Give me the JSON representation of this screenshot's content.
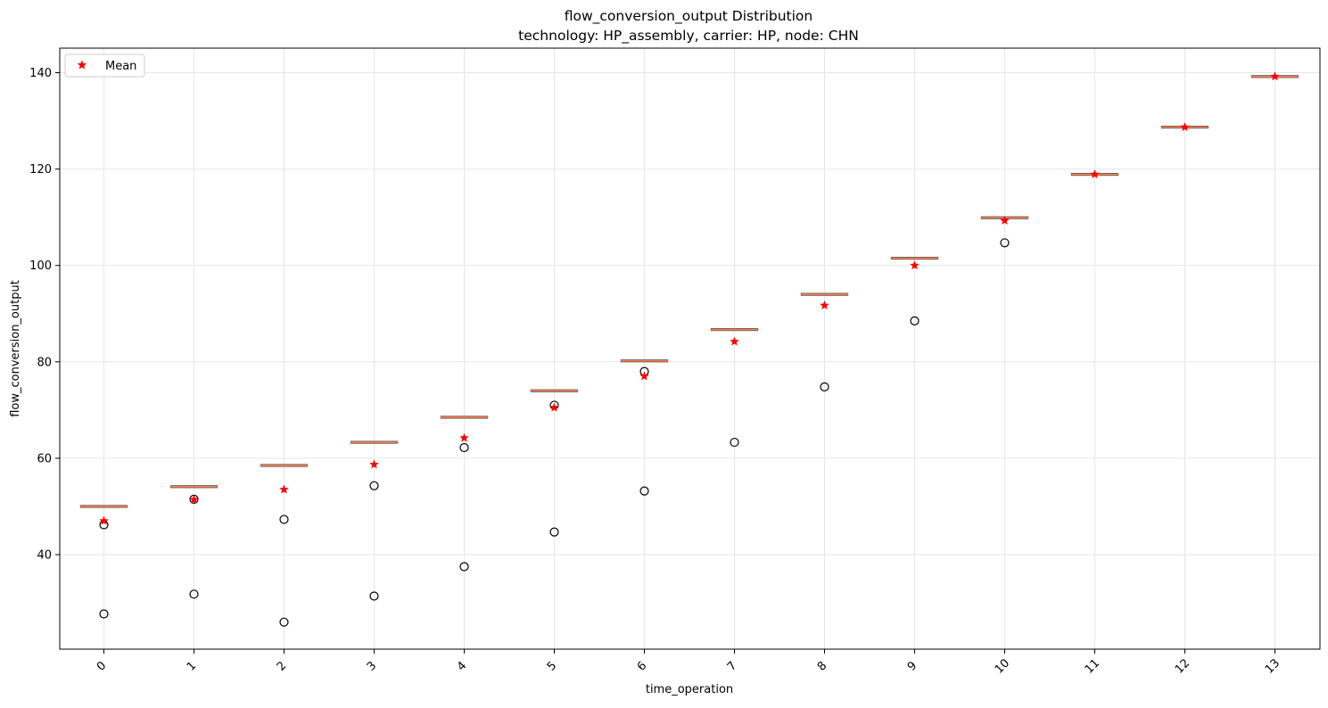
{
  "chart_data": {
    "type": "box",
    "title": "flow_conversion_output Distribution",
    "subtitle": "technology: HP_assembly, carrier: HP, node: CHN",
    "xlabel": "time_operation",
    "ylabel": "flow_conversion_output",
    "categories": [
      "0",
      "1",
      "2",
      "3",
      "4",
      "5",
      "6",
      "7",
      "8",
      "9",
      "10",
      "11",
      "12",
      "13"
    ],
    "y_ticks": [
      40,
      60,
      80,
      100,
      120,
      140
    ],
    "ylim": [
      20,
      145
    ],
    "grid": true,
    "legend": {
      "placement": "upper-left",
      "entries": [
        {
          "label": "Mean",
          "marker": "star",
          "color": "#ff0000"
        }
      ]
    },
    "box_color": "#ff7f50",
    "boxes": [
      {
        "x": "0",
        "median": 50.0,
        "mean": 47.0,
        "outliers": [
          46.2,
          27.7
        ]
      },
      {
        "x": "1",
        "median": 54.1,
        "mean": 51.4,
        "outliers": [
          51.5,
          31.8
        ]
      },
      {
        "x": "2",
        "median": 58.5,
        "mean": 53.5,
        "outliers": [
          47.3,
          26.0
        ]
      },
      {
        "x": "3",
        "median": 63.3,
        "mean": 58.7,
        "outliers": [
          54.3,
          31.4
        ]
      },
      {
        "x": "4",
        "median": 68.5,
        "mean": 64.2,
        "outliers": [
          62.2,
          37.5
        ]
      },
      {
        "x": "5",
        "median": 74.0,
        "mean": 70.5,
        "outliers": [
          71.0,
          44.7
        ]
      },
      {
        "x": "6",
        "median": 80.2,
        "mean": 77.0,
        "outliers": [
          78.0,
          53.2
        ]
      },
      {
        "x": "7",
        "median": 86.7,
        "mean": 84.2,
        "outliers": [
          63.3
        ]
      },
      {
        "x": "8",
        "median": 94.0,
        "mean": 91.7,
        "outliers": [
          74.8
        ]
      },
      {
        "x": "9",
        "median": 101.5,
        "mean": 100.0,
        "outliers": [
          88.5
        ]
      },
      {
        "x": "10",
        "median": 109.9,
        "mean": 109.3,
        "outliers": [
          104.7
        ]
      },
      {
        "x": "11",
        "median": 118.9,
        "mean": 118.9,
        "outliers": []
      },
      {
        "x": "12",
        "median": 128.7,
        "mean": 128.7,
        "outliers": []
      },
      {
        "x": "13",
        "median": 139.2,
        "mean": 139.2,
        "outliers": []
      }
    ]
  }
}
